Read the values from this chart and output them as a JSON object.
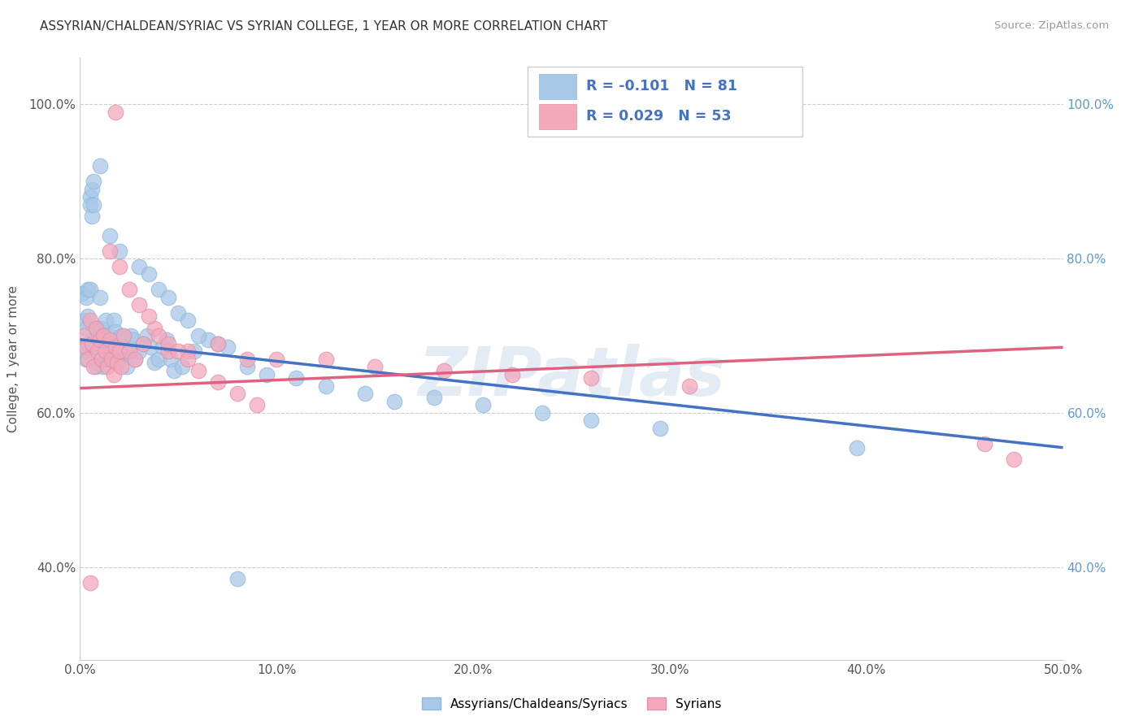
{
  "title": "ASSYRIAN/CHALDEAN/SYRIAC VS SYRIAN COLLEGE, 1 YEAR OR MORE CORRELATION CHART",
  "source": "Source: ZipAtlas.com",
  "ylabel_label": "College, 1 year or more",
  "legend_label1": "Assyrians/Chaldeans/Syriacs",
  "legend_label2": "Syrians",
  "R1": -0.101,
  "N1": 81,
  "R2": 0.029,
  "N2": 53,
  "color1": "#a8c8e8",
  "color2": "#f4a8bc",
  "line_color1": "#4472c4",
  "line_color2": "#e06080",
  "dash_color": "#90b8d8",
  "watermark": "ZIPatlas",
  "background": "#ffffff",
  "xlim": [
    0.0,
    0.5
  ],
  "ylim": [
    0.28,
    1.06
  ]
}
